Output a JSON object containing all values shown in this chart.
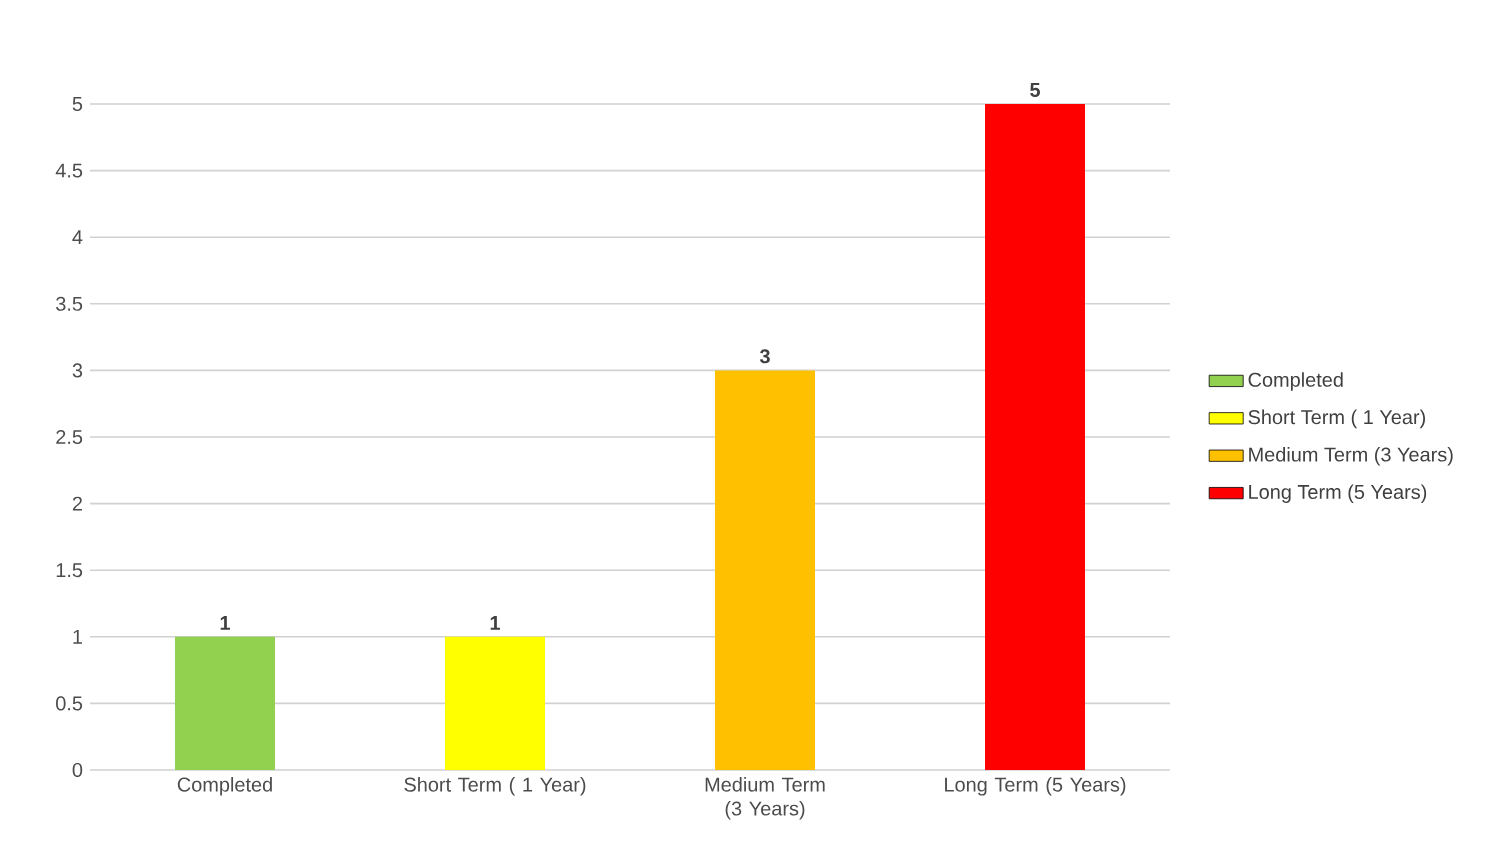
{
  "chart_data": {
    "type": "bar",
    "categories": [
      "Completed",
      "Short Term ( 1 Year)",
      "Medium Term (3 Years)",
      "Long Term (5 Years)"
    ],
    "series": [
      {
        "name": "Completed",
        "color": "#92d050",
        "values": [
          1,
          null,
          null,
          null
        ]
      },
      {
        "name": "Short Term ( 1 Year)",
        "color": "#ffff00",
        "values": [
          null,
          1,
          null,
          null
        ]
      },
      {
        "name": "Medium Term (3 Years)",
        "color": "#ffc000",
        "values": [
          null,
          null,
          3,
          null
        ]
      },
      {
        "name": "Long Term (5 Years)",
        "color": "#ff0000",
        "values": [
          null,
          null,
          null,
          5
        ]
      }
    ],
    "ylim": [
      0,
      5
    ],
    "yticks": [
      0,
      0.5,
      1,
      1.5,
      2,
      2.5,
      3,
      3.5,
      4,
      4.5,
      5
    ],
    "grid": "y",
    "legend": "right",
    "data_labels": true
  }
}
